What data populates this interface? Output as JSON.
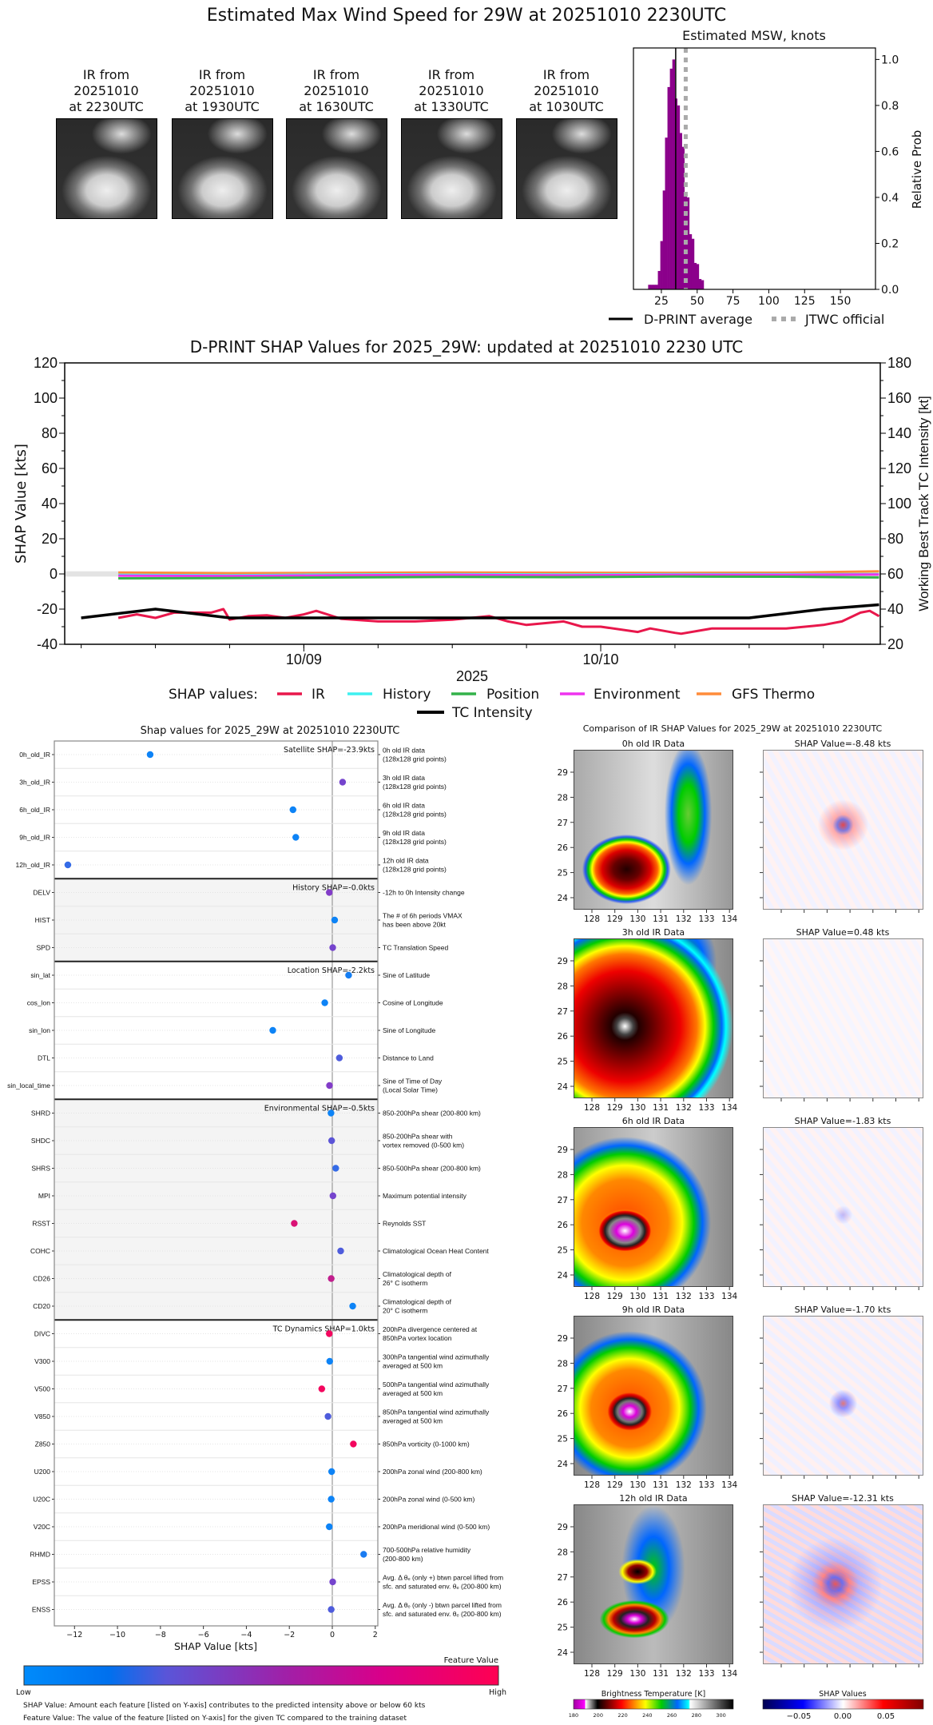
{
  "title": "Estimated Max Wind Speed for 29W at 20251010 2230UTC",
  "ir_thumbnails": [
    {
      "lines": [
        "IR from",
        "20251010",
        "at 2230UTC"
      ]
    },
    {
      "lines": [
        "IR from",
        "20251010",
        "at 1930UTC"
      ]
    },
    {
      "lines": [
        "IR from",
        "20251010",
        "at 1630UTC"
      ]
    },
    {
      "lines": [
        "IR from",
        "20251010",
        "at 1330UTC"
      ]
    },
    {
      "lines": [
        "IR from",
        "20251010",
        "at 1030UTC"
      ]
    }
  ],
  "chart_data": [
    {
      "type": "bar",
      "title": "Estimated MSW, knots",
      "xlabel": "",
      "ylabel": "Relative Prob",
      "xlim": [
        5.5,
        174.5
      ],
      "ylim": [
        0,
        1.05
      ],
      "xticks": [
        25,
        50,
        75,
        100,
        125,
        150
      ],
      "yticks": [
        "0.0",
        "0.2",
        "0.4",
        "0.6",
        "0.8",
        "1.0"
      ],
      "bar_color": "#8b008b",
      "bin_width": 1.7,
      "bins": [
        {
          "x": 16.6,
          "p": 0.02
        },
        {
          "x": 18.3,
          "p": 0.02
        },
        {
          "x": 20.0,
          "p": 0.02
        },
        {
          "x": 21.7,
          "p": 0.02
        },
        {
          "x": 23.4,
          "p": 0.08
        },
        {
          "x": 25.1,
          "p": 0.21
        },
        {
          "x": 26.8,
          "p": 0.43
        },
        {
          "x": 28.4,
          "p": 0.66
        },
        {
          "x": 30.1,
          "p": 0.88
        },
        {
          "x": 31.8,
          "p": 0.96
        },
        {
          "x": 33.5,
          "p": 1.0
        },
        {
          "x": 35.2,
          "p": 0.83
        },
        {
          "x": 36.9,
          "p": 0.8
        },
        {
          "x": 38.5,
          "p": 0.68
        },
        {
          "x": 40.2,
          "p": 0.62
        },
        {
          "x": 41.9,
          "p": 0.42
        },
        {
          "x": 43.6,
          "p": 0.4
        },
        {
          "x": 45.3,
          "p": 0.24
        },
        {
          "x": 47.0,
          "p": 0.22
        },
        {
          "x": 48.6,
          "p": 0.115
        },
        {
          "x": 50.3,
          "p": 0.11
        },
        {
          "x": 52.0,
          "p": 0.045
        },
        {
          "x": 53.7,
          "p": 0.04
        }
      ],
      "dprint_average": 35,
      "jtwc_official": 42,
      "legend": [
        {
          "label": "D-PRINT average",
          "color": "#000000",
          "style": "solid"
        },
        {
          "label": "JTWC official",
          "color": "#aaaaaa",
          "style": "dotted"
        }
      ],
      "legend_placement": "bottom"
    },
    {
      "type": "line",
      "title": "D-PRINT SHAP Values for 2025_29W: updated at 20251010 2230 UTC",
      "xlabel": "2025",
      "ylabel": "SHAP Value [kts]",
      "y2label": "Working Best Track TC Intensity [kt]",
      "xlim": [
        "2025-10-08 04:40",
        "2025-10-10 22:36"
      ],
      "xticks": [
        {
          "t": "2025-10-09 00:00",
          "label": "10/09"
        },
        {
          "t": "2025-10-10 00:00",
          "label": "10/10"
        }
      ],
      "ylim": [
        -40,
        120
      ],
      "yticks": [
        -40,
        -20,
        0,
        20,
        40,
        60,
        80,
        100,
        120
      ],
      "y2lim": [
        20,
        180
      ],
      "y2ticks": [
        20,
        40,
        60,
        80,
        100,
        120,
        140,
        160,
        180
      ],
      "zero_band": [
        -1.5,
        1.5
      ],
      "legend_title": "SHAP values:",
      "legend_placement": "bottom",
      "series": [
        {
          "name": "GFS Thermo",
          "color": "#ff8c3a",
          "axis": "left",
          "t": [
            "2025-10-08 09:00",
            "2025-10-08 18:00",
            "2025-10-09 03:00",
            "2025-10-09 12:00",
            "2025-10-09 21:00",
            "2025-10-10 06:00",
            "2025-10-10 15:00",
            "2025-10-10 22:30"
          ],
          "v": [
            0.8,
            0.4,
            0.6,
            0.8,
            0.7,
            0.6,
            0.7,
            1.5
          ]
        },
        {
          "name": "History",
          "color": "#3ef0f0",
          "axis": "left",
          "t": [
            "2025-10-08 09:00",
            "2025-10-08 18:00",
            "2025-10-09 03:00",
            "2025-10-09 12:00",
            "2025-10-09 21:00",
            "2025-10-10 06:00",
            "2025-10-10 15:00",
            "2025-10-10 22:30"
          ],
          "v": [
            -0.5,
            -0.8,
            -0.3,
            -0.2,
            -0.3,
            -0.2,
            -0.2,
            -0.1
          ]
        },
        {
          "name": "Environment",
          "color": "#ee33ee",
          "axis": "left",
          "t": [
            "2025-10-08 09:00",
            "2025-10-08 18:00",
            "2025-10-09 03:00",
            "2025-10-09 12:00",
            "2025-10-09 21:00",
            "2025-10-10 06:00",
            "2025-10-10 15:00",
            "2025-10-10 22:30"
          ],
          "v": [
            -1.0,
            -1.2,
            -0.8,
            -0.5,
            -0.8,
            -0.5,
            -0.5,
            -0.3
          ]
        },
        {
          "name": "Position",
          "color": "#33b24a",
          "axis": "left",
          "t": [
            "2025-10-08 09:00",
            "2025-10-08 18:00",
            "2025-10-09 03:00",
            "2025-10-09 12:00",
            "2025-10-09 21:00",
            "2025-10-10 06:00",
            "2025-10-10 15:00",
            "2025-10-10 22:30"
          ],
          "v": [
            -2.5,
            -2.3,
            -2.0,
            -1.7,
            -1.8,
            -1.5,
            -1.6,
            -2.0
          ]
        },
        {
          "name": "IR",
          "color": "#e8174b",
          "axis": "left",
          "t": [
            "2025-10-08 09:00",
            "2025-10-08 10:30",
            "2025-10-08 12:00",
            "2025-10-08 13:30",
            "2025-10-08 15:00",
            "2025-10-08 16:30",
            "2025-10-08 17:30",
            "2025-10-08 18:00",
            "2025-10-08 19:30",
            "2025-10-08 21:00",
            "2025-10-08 22:30",
            "2025-10-09 00:00",
            "2025-10-09 01:00",
            "2025-10-09 03:00",
            "2025-10-09 06:00",
            "2025-10-09 09:00",
            "2025-10-09 12:00",
            "2025-10-09 15:00",
            "2025-10-09 16:30",
            "2025-10-09 18:00",
            "2025-10-09 21:00",
            "2025-10-09 22:30",
            "2025-10-10 00:00",
            "2025-10-10 03:00",
            "2025-10-10 04:00",
            "2025-10-10 06:00",
            "2025-10-10 06:30",
            "2025-10-10 09:00",
            "2025-10-10 12:00",
            "2025-10-10 15:00",
            "2025-10-10 18:00",
            "2025-10-10 19:30",
            "2025-10-10 21:00",
            "2025-10-10 21:45",
            "2025-10-10 22:30"
          ],
          "v": [
            -25,
            -23,
            -25,
            -22,
            -22,
            -22,
            -20,
            -26,
            -24,
            -23.5,
            -25,
            -23,
            -21,
            -25.5,
            -27,
            -27,
            -26,
            -24,
            -27,
            -29,
            -27,
            -30,
            -30,
            -33,
            -31,
            -33.5,
            -34,
            -31,
            -31,
            -31,
            -29,
            -27,
            -22,
            -21,
            -24
          ]
        }
      ],
      "tc_intensity": {
        "name": "TC Intensity",
        "color": "#000000",
        "axis": "right",
        "t": [
          "2025-10-08 06:00",
          "2025-10-08 12:00",
          "2025-10-08 18:00",
          "2025-10-10 12:00",
          "2025-10-10 18:00",
          "2025-10-10 22:30"
        ],
        "v": [
          35,
          40,
          35,
          35,
          40,
          42.5
        ]
      }
    },
    {
      "type": "scatter",
      "title": "Shap values for 2025_29W at 20251010 2230UTC",
      "xlabel": "SHAP Value [kts]",
      "xlim": [
        -12.94,
        2.12
      ],
      "xticks": [
        -12,
        -10,
        -8,
        -6,
        -4,
        -2,
        0,
        2
      ],
      "colorbar": {
        "title": "Feature Value",
        "low": "Low",
        "high": "High",
        "low_color": "#008bfb",
        "high_color": "#ff0052"
      },
      "groups": [
        {
          "label": "Satellite SHAP=-23.9kts",
          "shaded": false,
          "count": 5
        },
        {
          "label": "History SHAP=-0.0kts",
          "shaded": true,
          "count": 3
        },
        {
          "label": "Location SHAP=-2.2kts",
          "shaded": false,
          "count": 5
        },
        {
          "label": "Environmental SHAP=-0.5kts",
          "shaded": true,
          "count": 8
        },
        {
          "label": "TC Dynamics SHAP=1.0kts",
          "shaded": false,
          "count": 11
        }
      ],
      "features": [
        {
          "name": "0h_old_IR",
          "desc": [
            "0h old IR data",
            "(128x128 grid points)"
          ],
          "shap": -8.48,
          "fv": 0.05
        },
        {
          "name": "3h_old_IR",
          "desc": [
            "3h old IR data",
            "(128x128 grid points)"
          ],
          "shap": 0.48,
          "fv": 0.45
        },
        {
          "name": "6h_old_IR",
          "desc": [
            "6h old IR data",
            "(128x128 grid points)"
          ],
          "shap": -1.83,
          "fv": 0.05
        },
        {
          "name": "9h_old_IR",
          "desc": [
            "9h old IR data",
            "(128x128 grid points)"
          ],
          "shap": -1.7,
          "fv": 0.05
        },
        {
          "name": "12h_old_IR",
          "desc": [
            "12h old IR data",
            "(128x128 grid points)"
          ],
          "shap": -12.31,
          "fv": 0.2
        },
        {
          "name": "DELV",
          "desc": [
            "-12h to 0h Intensity change"
          ],
          "shap": -0.14,
          "fv": 0.5
        },
        {
          "name": "HIST",
          "desc": [
            "The # of 6h periods VMAX",
            "has been above 20kt"
          ],
          "shap": 0.11,
          "fv": 0.05
        },
        {
          "name": "SPD",
          "desc": [
            "TC Translation Speed"
          ],
          "shap": 0.02,
          "fv": 0.45
        },
        {
          "name": "sin_lat",
          "desc": [
            "Sine of Latitude"
          ],
          "shap": 0.76,
          "fv": 0.08
        },
        {
          "name": "cos_lon",
          "desc": [
            "Cosine of Longitude"
          ],
          "shap": -0.35,
          "fv": 0.05
        },
        {
          "name": "sin_lon",
          "desc": [
            "Sine of Longitude"
          ],
          "shap": -2.77,
          "fv": 0.05
        },
        {
          "name": "DTL",
          "desc": [
            "Distance to Land"
          ],
          "shap": 0.33,
          "fv": 0.3
        },
        {
          "name": "sin_local_time",
          "desc": [
            "Sine of Time of Day",
            "(Local Solar Time)"
          ],
          "shap": -0.13,
          "fv": 0.5
        },
        {
          "name": "SHRD",
          "desc": [
            "850-200hPa shear (200-800 km)"
          ],
          "shap": -0.06,
          "fv": 0.05
        },
        {
          "name": "SHDC",
          "desc": [
            "850-200hPa shear with",
            "vortex removed (0-500 km)"
          ],
          "shap": -0.03,
          "fv": 0.35
        },
        {
          "name": "SHRS",
          "desc": [
            "850-500hPa shear (200-800 km)"
          ],
          "shap": 0.16,
          "fv": 0.2
        },
        {
          "name": "MPI",
          "desc": [
            "Maximum potential intensity"
          ],
          "shap": 0.03,
          "fv": 0.45
        },
        {
          "name": "RSST",
          "desc": [
            "Reynolds SST"
          ],
          "shap": -1.77,
          "fv": 0.85
        },
        {
          "name": "COHC",
          "desc": [
            "Climatological Ocean Heat Content"
          ],
          "shap": 0.39,
          "fv": 0.3
        },
        {
          "name": "CD26",
          "desc": [
            "Climatological depth of",
            "26° C isotherm"
          ],
          "shap": -0.05,
          "fv": 0.75
        },
        {
          "name": "CD20",
          "desc": [
            "Climatological depth of",
            "20° C isotherm"
          ],
          "shap": 0.95,
          "fv": 0.05
        },
        {
          "name": "DIVC",
          "desc": [
            "200hPa divergence centered at",
            "850hPa vortex location"
          ],
          "shap": -0.14,
          "fv": 0.95
        },
        {
          "name": "V300",
          "desc": [
            "300hPa tangential wind azimuthally",
            "averaged at 500 km"
          ],
          "shap": -0.12,
          "fv": 0.05
        },
        {
          "name": "V500",
          "desc": [
            "500hPa tangential wind azimuthally",
            "averaged at 500 km"
          ],
          "shap": -0.49,
          "fv": 0.95
        },
        {
          "name": "V850",
          "desc": [
            "850hPa tangential wind azimuthally",
            "averaged at 500 km"
          ],
          "shap": -0.2,
          "fv": 0.3
        },
        {
          "name": "Z850",
          "desc": [
            "850hPa vorticity (0-1000 km)"
          ],
          "shap": 0.98,
          "fv": 0.95
        },
        {
          "name": "U200",
          "desc": [
            "200hPa zonal wind (200-800 km)"
          ],
          "shap": -0.03,
          "fv": 0.05
        },
        {
          "name": "U20C",
          "desc": [
            "200hPa zonal wind (0-500 km)"
          ],
          "shap": -0.05,
          "fv": 0.05
        },
        {
          "name": "V20C",
          "desc": [
            "200hPa meridional wind (0-500 km)"
          ],
          "shap": -0.14,
          "fv": 0.05
        },
        {
          "name": "RHMD",
          "desc": [
            "700-500hPa relative humidity",
            "(200-800 km)"
          ],
          "shap": 1.46,
          "fv": 0.1
        },
        {
          "name": "EPSS",
          "desc": [
            "Avg. Δ θₑ (only +) btwn parcel lifted from",
            "sfc. and saturated env. θₑ (200-800 km)"
          ],
          "shap": 0.02,
          "fv": 0.45
        },
        {
          "name": "ENSS",
          "desc": [
            "Avg. Δ θₑ (only -) btwn parcel lifted from",
            "sfc. and saturated env. θₑ (200-800 km)"
          ],
          "shap": -0.05,
          "fv": 0.3
        }
      ]
    }
  ],
  "footnotes": {
    "shap_value": "SHAP Value: Amount each feature [listed on Y-axis] contributes to the predicted intensity above or below 60 kts",
    "feature_value": "Feature Value: The value of the feature [listed on Y-axis] for the given TC compared to the training dataset"
  },
  "ir_comparison": {
    "title": "Comparison of IR SHAP Values for 2025_29W at 20251010 2230UTC",
    "lat_ticks": [
      24,
      25,
      26,
      27,
      28,
      29
    ],
    "lon_ticks": [
      128,
      129,
      130,
      131,
      132,
      133,
      134
    ],
    "panels": [
      {
        "ir_title": "0h old IR Data",
        "shap_title": "SHAP Value=-8.48 kts"
      },
      {
        "ir_title": "3h old IR Data",
        "shap_title": "SHAP Value=0.48 kts"
      },
      {
        "ir_title": "6h old IR Data",
        "shap_title": "SHAP Value=-1.83 kts"
      },
      {
        "ir_title": "9h old IR Data",
        "shap_title": "SHAP Value=-1.70 kts"
      },
      {
        "ir_title": "12h old IR Data",
        "shap_title": "SHAP Value=-12.31 kts"
      }
    ],
    "bt_colorbar": {
      "title": "Brightness Temperature [K]",
      "ticks": [
        "180",
        "200",
        "220",
        "240",
        "260",
        "280",
        "300"
      ]
    },
    "shap_colorbar": {
      "title": "SHAP Values",
      "ticks": [
        "−0.05",
        "0.00",
        "0.05"
      ]
    }
  }
}
